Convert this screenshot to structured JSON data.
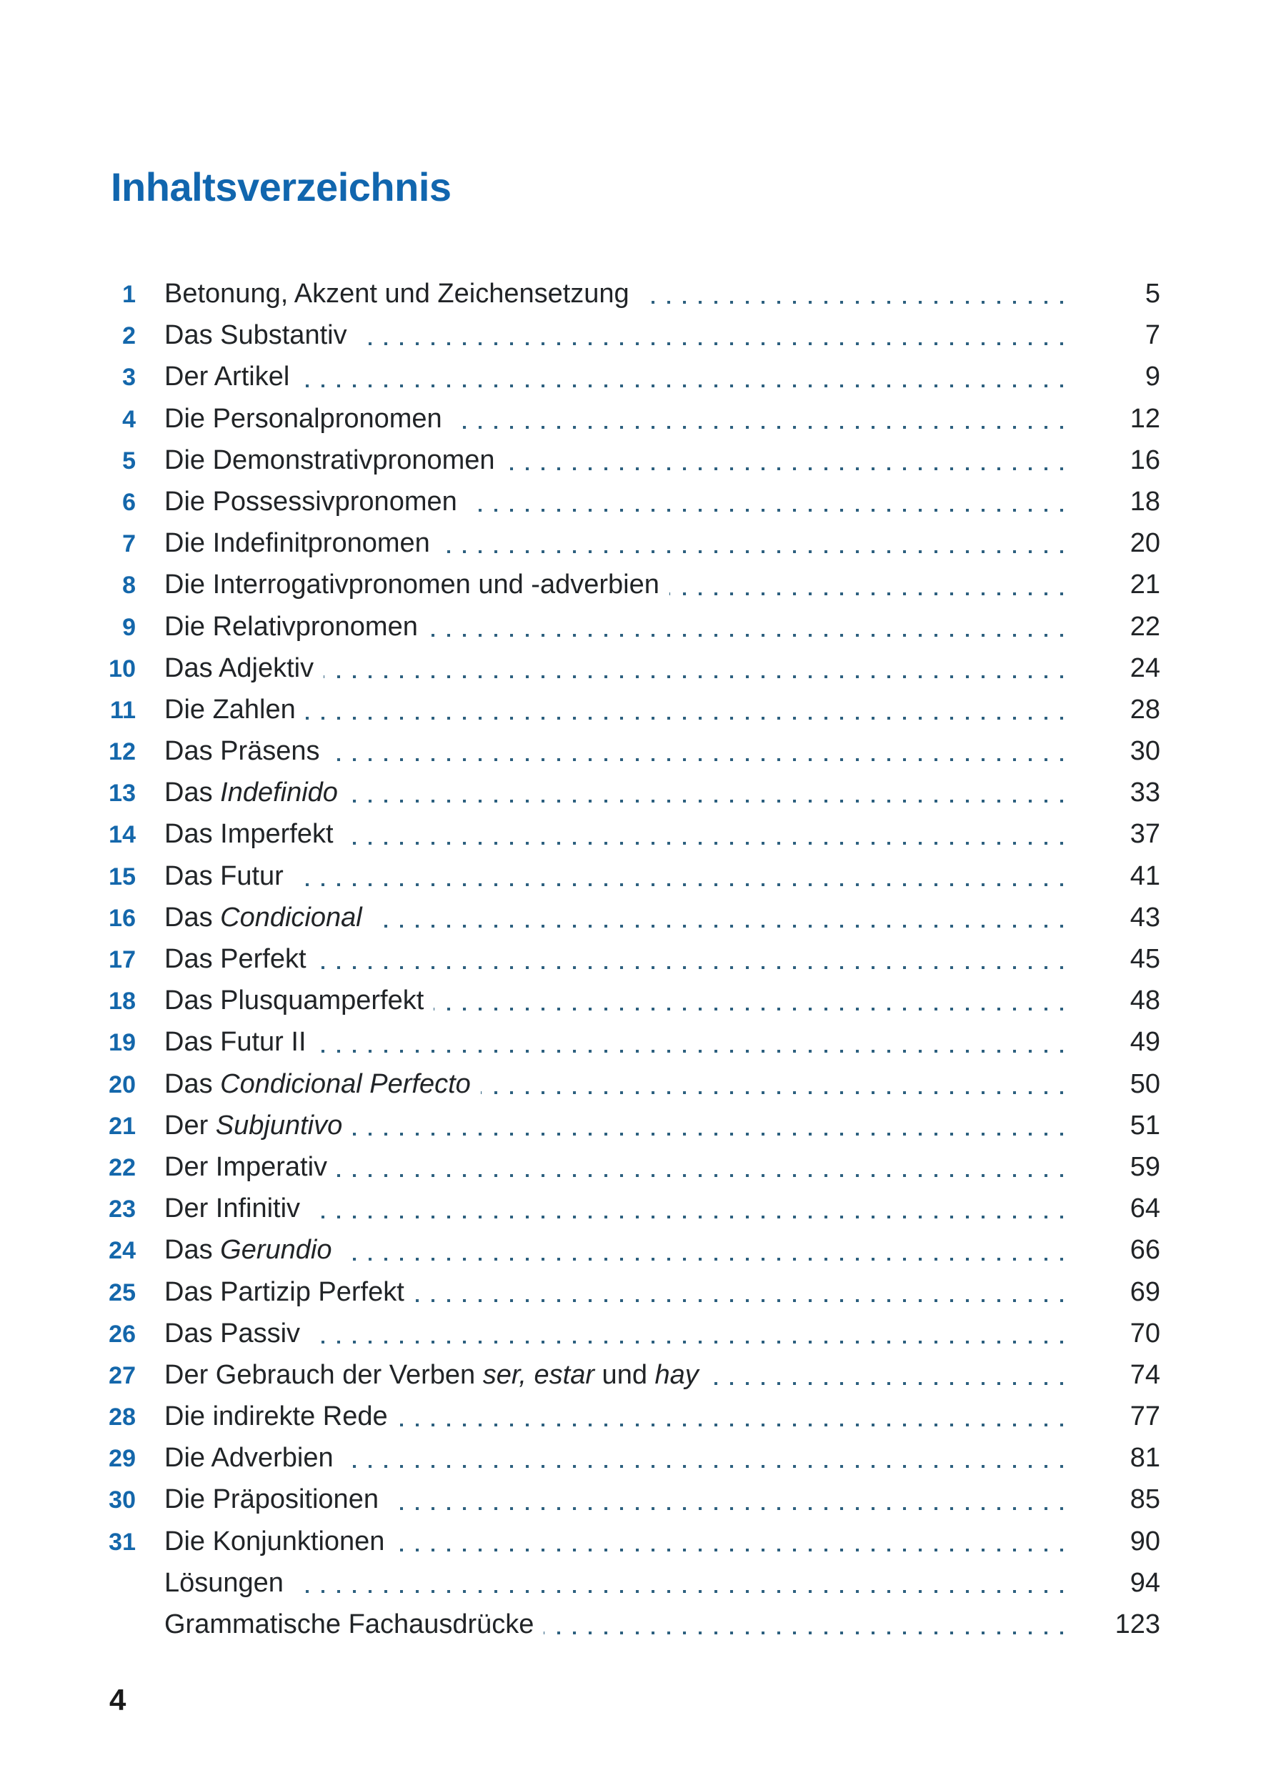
{
  "page": {
    "title": "Inhaltsverzeichnis",
    "page_number": "4",
    "colors": {
      "title_blue": "#1166ae",
      "number_blue": "#1467ab",
      "dots": "#2d607f",
      "text": "#212427"
    },
    "toc": [
      {
        "num": "1",
        "parts": [
          {
            "t": "Betonung, Akzent und Zeichensetzung",
            "i": false
          }
        ],
        "page": "5"
      },
      {
        "num": "2",
        "parts": [
          {
            "t": "Das Substantiv",
            "i": false
          }
        ],
        "page": "7"
      },
      {
        "num": "3",
        "parts": [
          {
            "t": "Der Artikel",
            "i": false
          }
        ],
        "page": "9"
      },
      {
        "num": "4",
        "parts": [
          {
            "t": "Die Personalpronomen",
            "i": false
          }
        ],
        "page": "12"
      },
      {
        "num": "5",
        "parts": [
          {
            "t": "Die Demonstrativpronomen",
            "i": false
          }
        ],
        "page": "16"
      },
      {
        "num": "6",
        "parts": [
          {
            "t": "Die Possessivpronomen",
            "i": false
          }
        ],
        "page": "18"
      },
      {
        "num": "7",
        "parts": [
          {
            "t": "Die Indefinitpronomen",
            "i": false
          }
        ],
        "page": "20"
      },
      {
        "num": "8",
        "parts": [
          {
            "t": "Die Interrogativpronomen und -adverbien",
            "i": false
          }
        ],
        "page": "21"
      },
      {
        "num": "9",
        "parts": [
          {
            "t": "Die Relativpronomen",
            "i": false
          }
        ],
        "page": "22"
      },
      {
        "num": "10",
        "parts": [
          {
            "t": "Das Adjektiv",
            "i": false
          }
        ],
        "page": "24"
      },
      {
        "num": "11",
        "parts": [
          {
            "t": "Die Zahlen",
            "i": false
          }
        ],
        "page": "28"
      },
      {
        "num": "12",
        "parts": [
          {
            "t": "Das Präsens",
            "i": false
          }
        ],
        "page": "30"
      },
      {
        "num": "13",
        "parts": [
          {
            "t": "Das ",
            "i": false
          },
          {
            "t": "Indefinido",
            "i": true
          }
        ],
        "page": "33"
      },
      {
        "num": "14",
        "parts": [
          {
            "t": "Das Imperfekt",
            "i": false
          }
        ],
        "page": "37"
      },
      {
        "num": "15",
        "parts": [
          {
            "t": "Das Futur",
            "i": false
          }
        ],
        "page": "41"
      },
      {
        "num": "16",
        "parts": [
          {
            "t": "Das ",
            "i": false
          },
          {
            "t": "Condicional",
            "i": true
          }
        ],
        "page": "43"
      },
      {
        "num": "17",
        "parts": [
          {
            "t": "Das Perfekt",
            "i": false
          }
        ],
        "page": "45"
      },
      {
        "num": "18",
        "parts": [
          {
            "t": "Das Plusquamperfekt",
            "i": false
          }
        ],
        "page": "48"
      },
      {
        "num": "19",
        "parts": [
          {
            "t": "Das Futur II",
            "i": false
          }
        ],
        "page": "49"
      },
      {
        "num": "20",
        "parts": [
          {
            "t": "Das ",
            "i": false
          },
          {
            "t": "Condicional Perfecto",
            "i": true
          }
        ],
        "page": "50"
      },
      {
        "num": "21",
        "parts": [
          {
            "t": "Der ",
            "i": false
          },
          {
            "t": "Subjuntivo",
            "i": true
          }
        ],
        "page": "51"
      },
      {
        "num": "22",
        "parts": [
          {
            "t": "Der Imperativ",
            "i": false
          }
        ],
        "page": "59"
      },
      {
        "num": "23",
        "parts": [
          {
            "t": "Der Infinitiv",
            "i": false
          }
        ],
        "page": "64"
      },
      {
        "num": "24",
        "parts": [
          {
            "t": "Das ",
            "i": false
          },
          {
            "t": "Gerundio",
            "i": true
          }
        ],
        "page": "66"
      },
      {
        "num": "25",
        "parts": [
          {
            "t": "Das Partizip Perfekt",
            "i": false
          }
        ],
        "page": "69"
      },
      {
        "num": "26",
        "parts": [
          {
            "t": "Das Passiv",
            "i": false
          }
        ],
        "page": "70"
      },
      {
        "num": "27",
        "parts": [
          {
            "t": "Der Gebrauch der Verben ",
            "i": false
          },
          {
            "t": "ser, estar",
            "i": true
          },
          {
            "t": " und ",
            "i": false
          },
          {
            "t": "hay",
            "i": true
          }
        ],
        "page": "74"
      },
      {
        "num": "28",
        "parts": [
          {
            "t": "Die indirekte Rede",
            "i": false
          }
        ],
        "page": "77"
      },
      {
        "num": "29",
        "parts": [
          {
            "t": "Die Adverbien",
            "i": false
          }
        ],
        "page": "81"
      },
      {
        "num": "30",
        "parts": [
          {
            "t": "Die Präpositionen",
            "i": false
          }
        ],
        "page": "85"
      },
      {
        "num": "31",
        "parts": [
          {
            "t": "Die Konjunktionen",
            "i": false
          }
        ],
        "page": "90"
      },
      {
        "num": "",
        "parts": [
          {
            "t": "Lösungen",
            "i": false
          }
        ],
        "page": "94"
      },
      {
        "num": "",
        "parts": [
          {
            "t": "Grammatische Fachausdrücke",
            "i": false
          }
        ],
        "page": "123"
      }
    ]
  }
}
